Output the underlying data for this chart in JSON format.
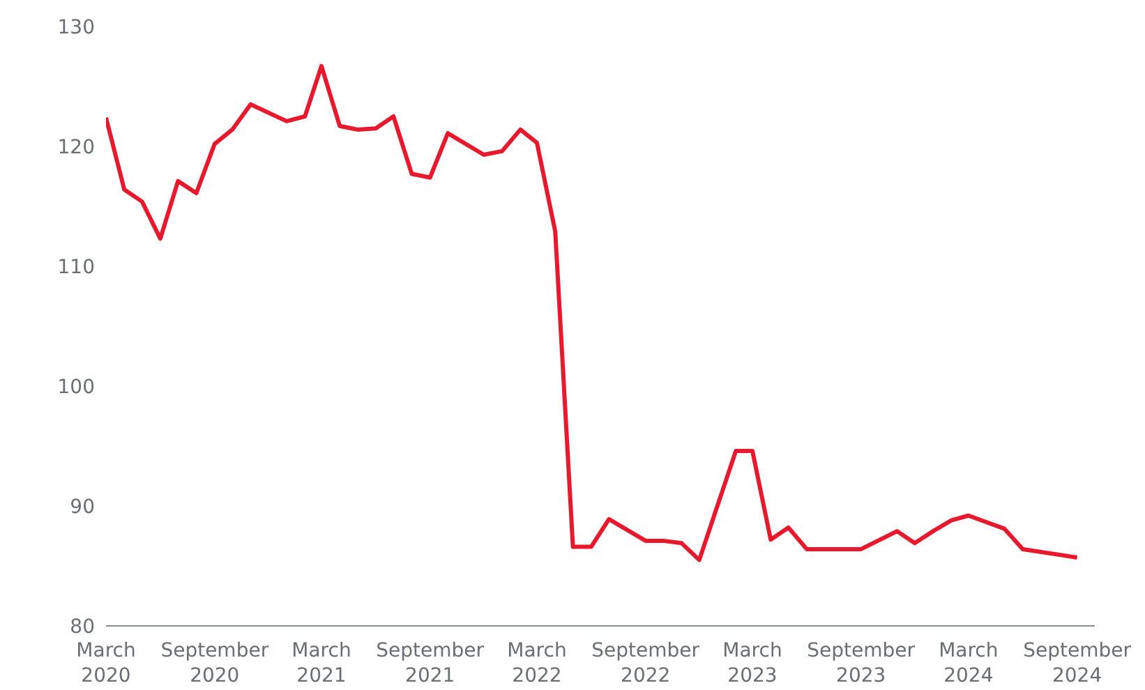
{
  "chart_data": {
    "type": "line",
    "x": [
      "2020-03",
      "2020-04",
      "2020-05",
      "2020-06",
      "2020-07",
      "2020-08",
      "2020-09",
      "2020-10",
      "2020-11",
      "2021-01",
      "2021-02",
      "2021-03",
      "2021-04",
      "2021-05",
      "2021-06",
      "2021-07",
      "2021-08",
      "2021-09",
      "2021-10",
      "2021-12",
      "2022-01",
      "2022-02",
      "2022-03",
      "2022-04",
      "2022-05",
      "2022-06",
      "2022-07",
      "2022-09",
      "2022-10",
      "2022-11",
      "2022-12",
      "2023-02",
      "2023-03",
      "2023-04",
      "2023-05",
      "2023-06",
      "2023-09",
      "2023-11",
      "2023-12",
      "2024-01",
      "2024-02",
      "2024-03",
      "2024-05",
      "2024-06",
      "2024-09"
    ],
    "series": [
      {
        "color": "#e8192c",
        "values": [
          122.4,
          116.4,
          115.4,
          112.3,
          117.1,
          116.1,
          120.2,
          121.4,
          123.5,
          122.1,
          122.5,
          126.7,
          121.7,
          121.4,
          121.5,
          122.5,
          117.7,
          117.4,
          121.1,
          119.3,
          119.6,
          121.4,
          120.3,
          112.9,
          86.6,
          86.6,
          88.9,
          87.1,
          87.1,
          86.9,
          85.5,
          94.6,
          94.6,
          87.2,
          88.2,
          86.4,
          86.4,
          87.9,
          86.9,
          87.9,
          88.8,
          89.2,
          88.1,
          86.4,
          85.7
        ]
      }
    ],
    "xlim": [
      "2020-03",
      "2024-10"
    ],
    "xticks": [
      {
        "value": "2020-03",
        "label": "March 2020"
      },
      {
        "value": "2020-09",
        "label": "September 2020"
      },
      {
        "value": "2021-03",
        "label": "March 2021"
      },
      {
        "value": "2021-09",
        "label": "September 2021"
      },
      {
        "value": "2022-03",
        "label": "March 2022"
      },
      {
        "value": "2022-09",
        "label": "September 2022"
      },
      {
        "value": "2023-03",
        "label": "March 2023"
      },
      {
        "value": "2023-09",
        "label": "September 2023"
      },
      {
        "value": "2024-03",
        "label": "March 2024"
      },
      {
        "value": "2024-09",
        "label": "September 2024"
      }
    ],
    "ylim": [
      80,
      130
    ],
    "yticks": [
      80,
      90,
      100,
      110,
      120,
      130
    ],
    "grid": false,
    "legend": false,
    "marker": "none",
    "line_style": "solid"
  }
}
